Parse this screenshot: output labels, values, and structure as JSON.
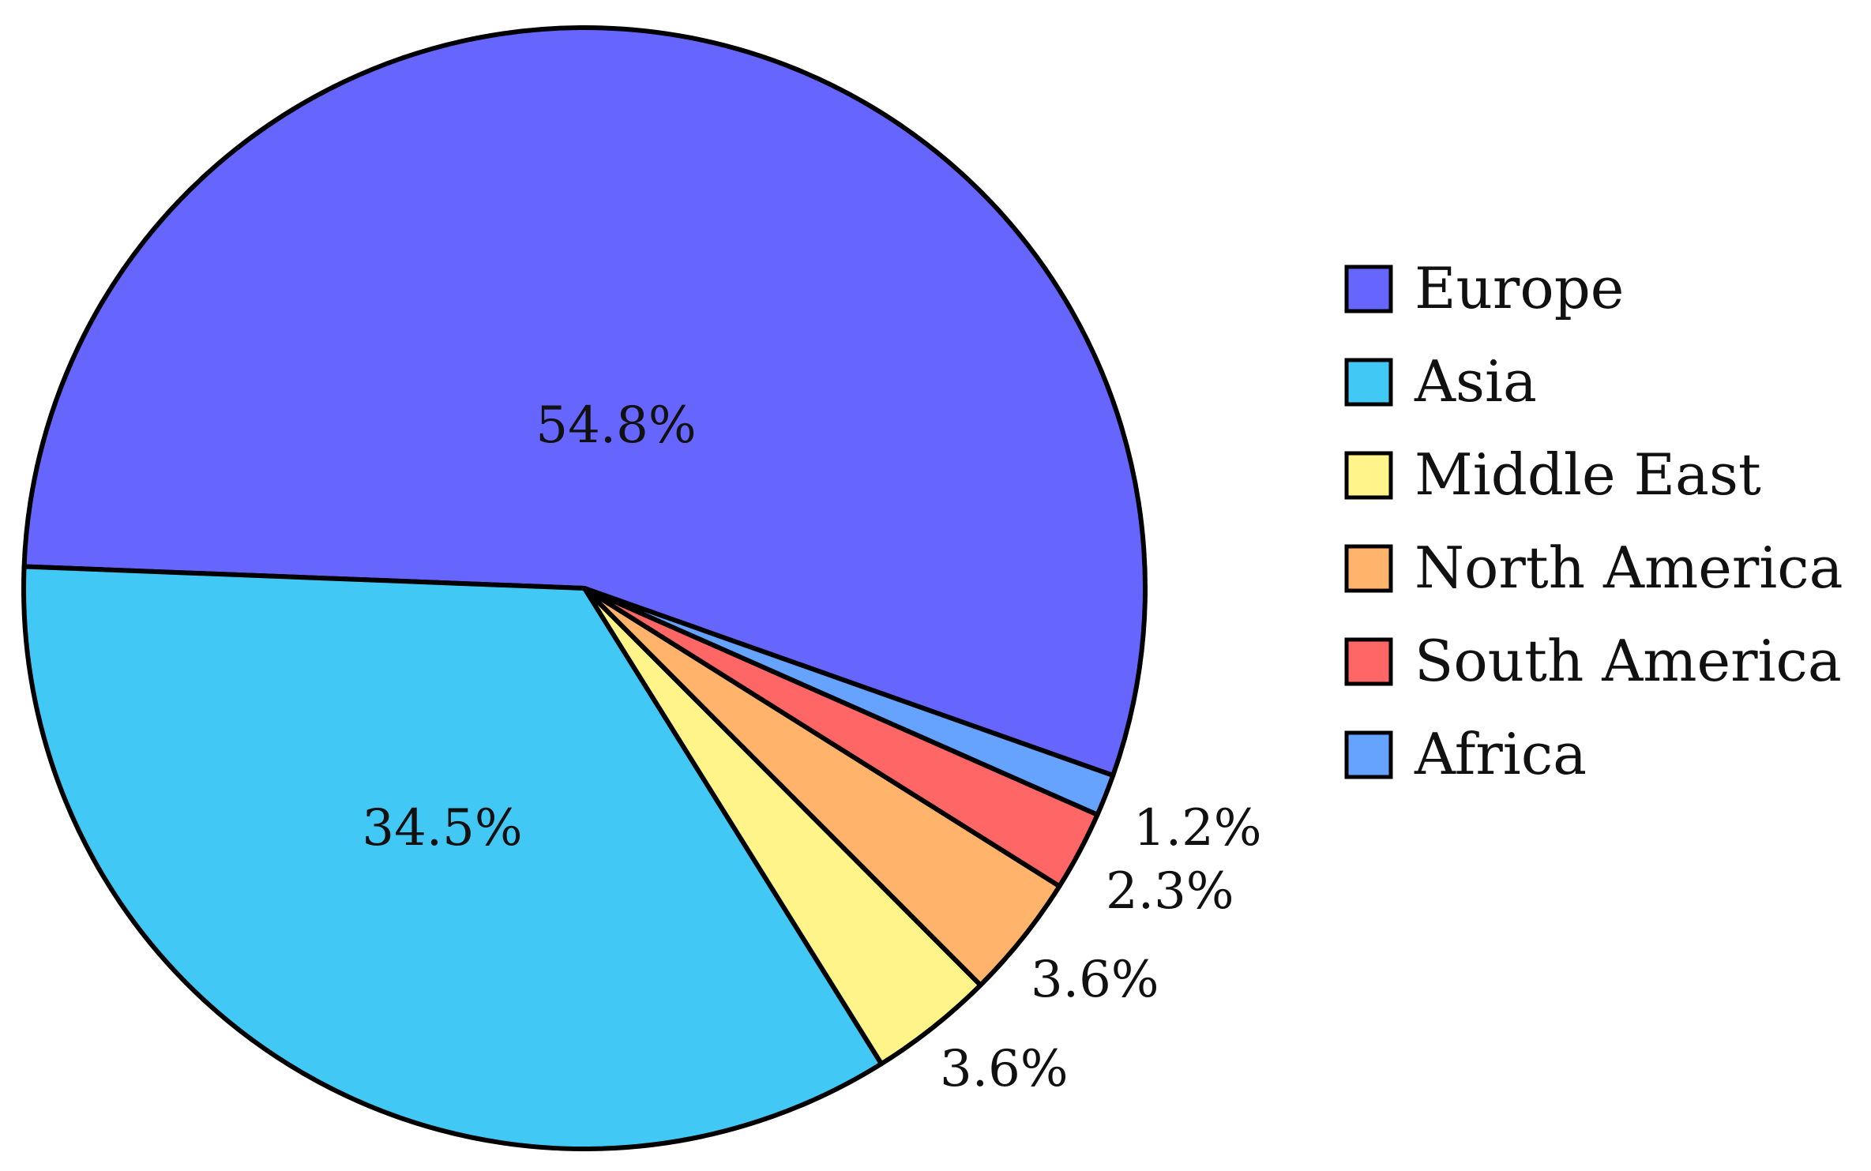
{
  "chart_data": {
    "type": "pie",
    "title": "",
    "slices": [
      {
        "label": "Europe",
        "value": 54.8,
        "display": "54.8%",
        "color": "#6666ff"
      },
      {
        "label": "Asia",
        "value": 34.5,
        "display": "34.5%",
        "color": "#42c8f4"
      },
      {
        "label": "Middle East",
        "value": 3.6,
        "display": "3.6%",
        "color": "#fff48a"
      },
      {
        "label": "North America",
        "value": 3.6,
        "display": "3.6%",
        "color": "#ffb36b"
      },
      {
        "label": "South America",
        "value": 2.3,
        "display": "2.3%",
        "color": "#ff6666"
      },
      {
        "label": "Africa",
        "value": 1.2,
        "display": "1.2%",
        "color": "#66a3ff"
      }
    ],
    "legend_position": "right",
    "start_direction": "right, slightly below horizontal",
    "direction": "counter-clockwise"
  }
}
